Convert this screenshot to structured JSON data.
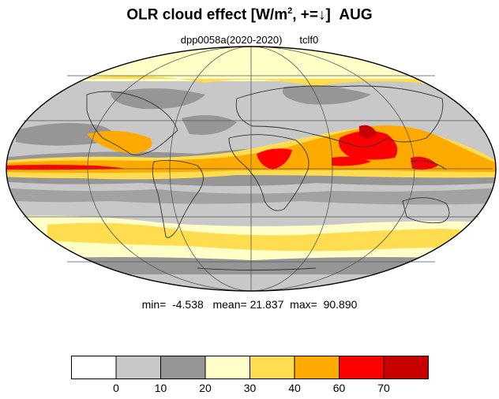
{
  "title": {
    "main": "OLR cloud effect [W/m",
    "sup": "2",
    "after_sup": ", +=",
    "arrow": "↓",
    "after_arrow": "]",
    "month": "AUG"
  },
  "subtitle": {
    "experiment": "dpp0058a(2020-2020)",
    "variable": "tclf0"
  },
  "stats": {
    "min_label": "min=",
    "min_value": "-4.538",
    "mean_label": "mean=",
    "mean_value": "21.837",
    "max_label": "max=",
    "max_value": "90.890"
  },
  "colorbar": {
    "bins": [
      {
        "color": "#ffffff"
      },
      {
        "color": "#c8c8c8"
      },
      {
        "color": "#969696"
      },
      {
        "color": "#ffffc8"
      },
      {
        "color": "#ffdc50"
      },
      {
        "color": "#ffaa00"
      },
      {
        "color": "#ff0000"
      },
      {
        "color": "#c80000"
      }
    ],
    "tick_labels": [
      "0",
      "10",
      "20",
      "30",
      "40",
      "60",
      "70"
    ]
  },
  "map": {
    "projection": "mollweide",
    "grid": true
  }
}
